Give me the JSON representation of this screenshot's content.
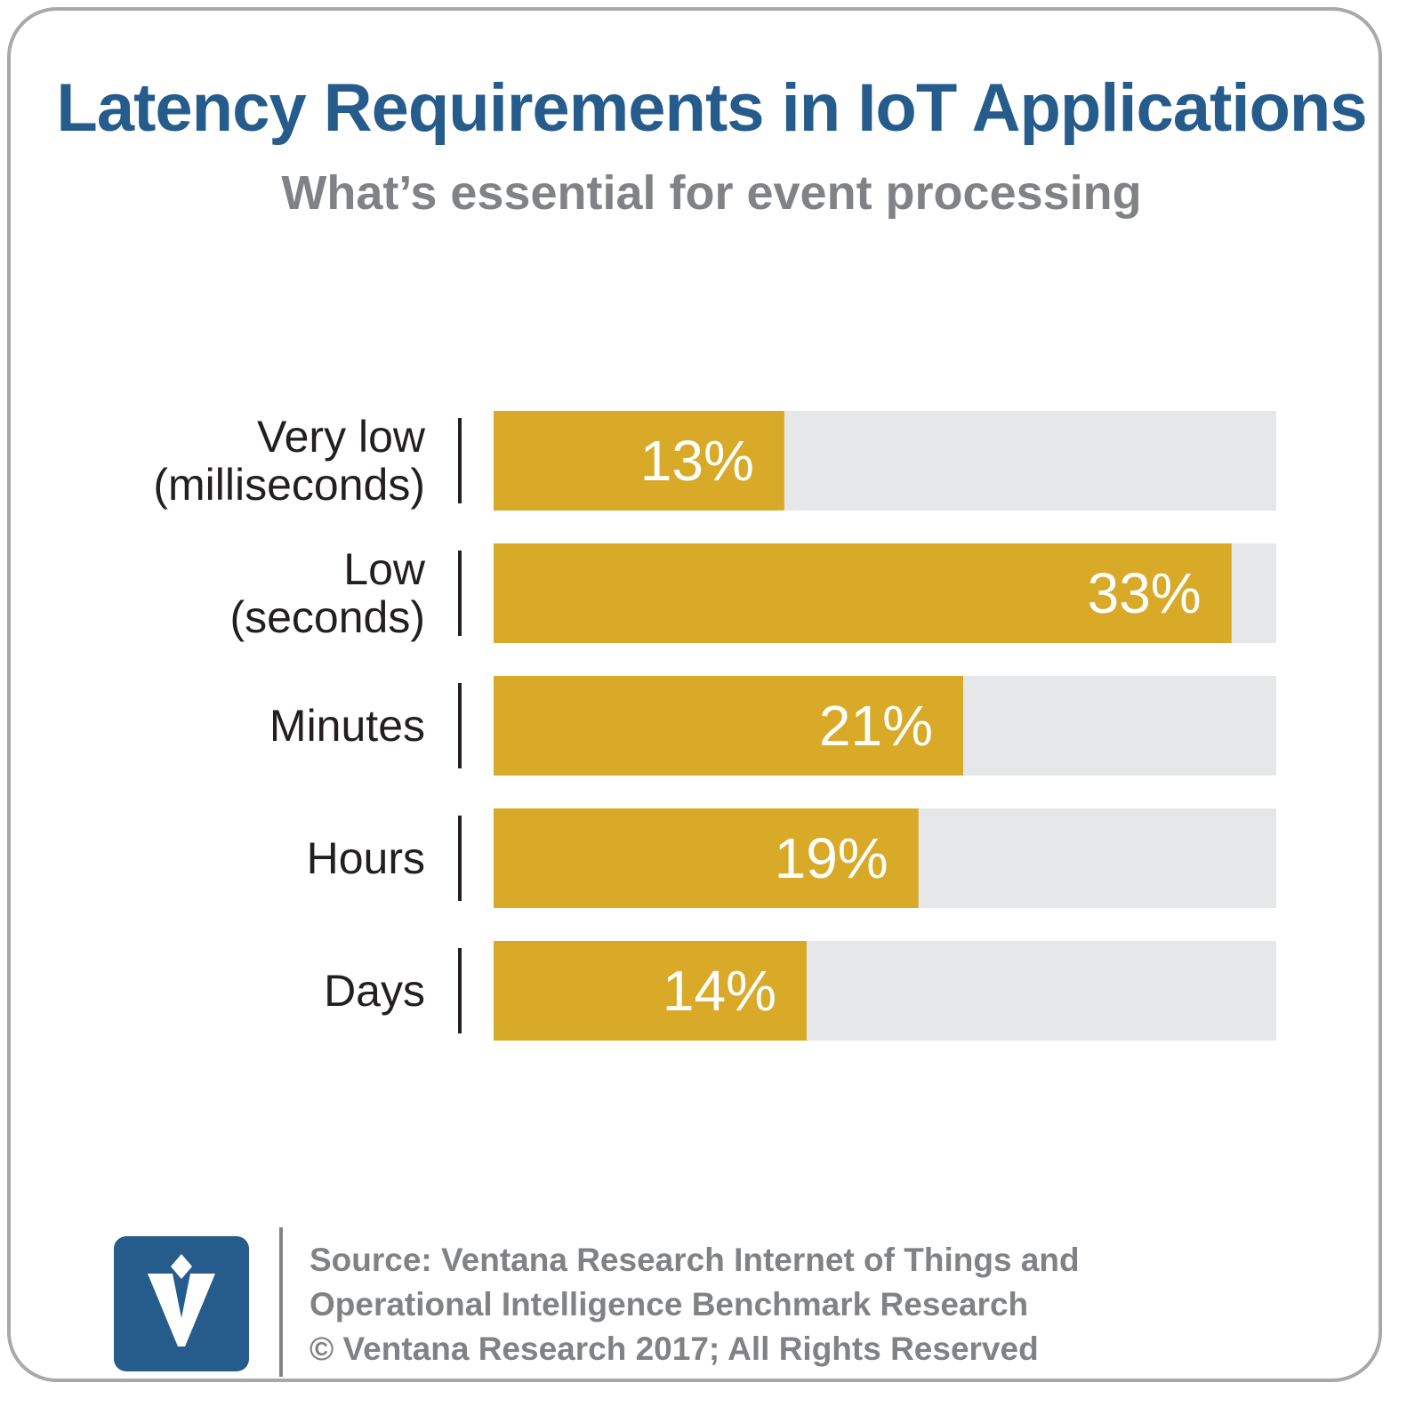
{
  "title": "Latency Requirements in IoT Applications",
  "subtitle": "What’s essential for event processing",
  "colors": {
    "title": "#255c8c",
    "subtitle": "#808285",
    "bar": "#d9aa27",
    "track": "#e6e7e8",
    "label": "#231f20",
    "value_label": "#ffffff",
    "logo_bg": "#255c8c"
  },
  "chart_data": {
    "type": "bar",
    "orientation": "horizontal",
    "categories": [
      [
        "Very low",
        "(milliseconds)"
      ],
      [
        "Low",
        "(seconds)"
      ],
      [
        "Minutes"
      ],
      [
        "Hours"
      ],
      [
        "Days"
      ]
    ],
    "values": [
      13,
      33,
      21,
      19,
      14
    ],
    "value_labels": [
      "13%",
      "33%",
      "21%",
      "19%",
      "14%"
    ],
    "xlim": [
      0,
      35
    ],
    "grid": false,
    "legend": "none"
  },
  "footer": {
    "logo_icon": "ventana-logo-icon",
    "source_lines": [
      "Source: Ventana Research Internet of Things and",
      "Operational Intelligence Benchmark Research",
      "© Ventana Research 2017; All Rights Reserved"
    ]
  }
}
